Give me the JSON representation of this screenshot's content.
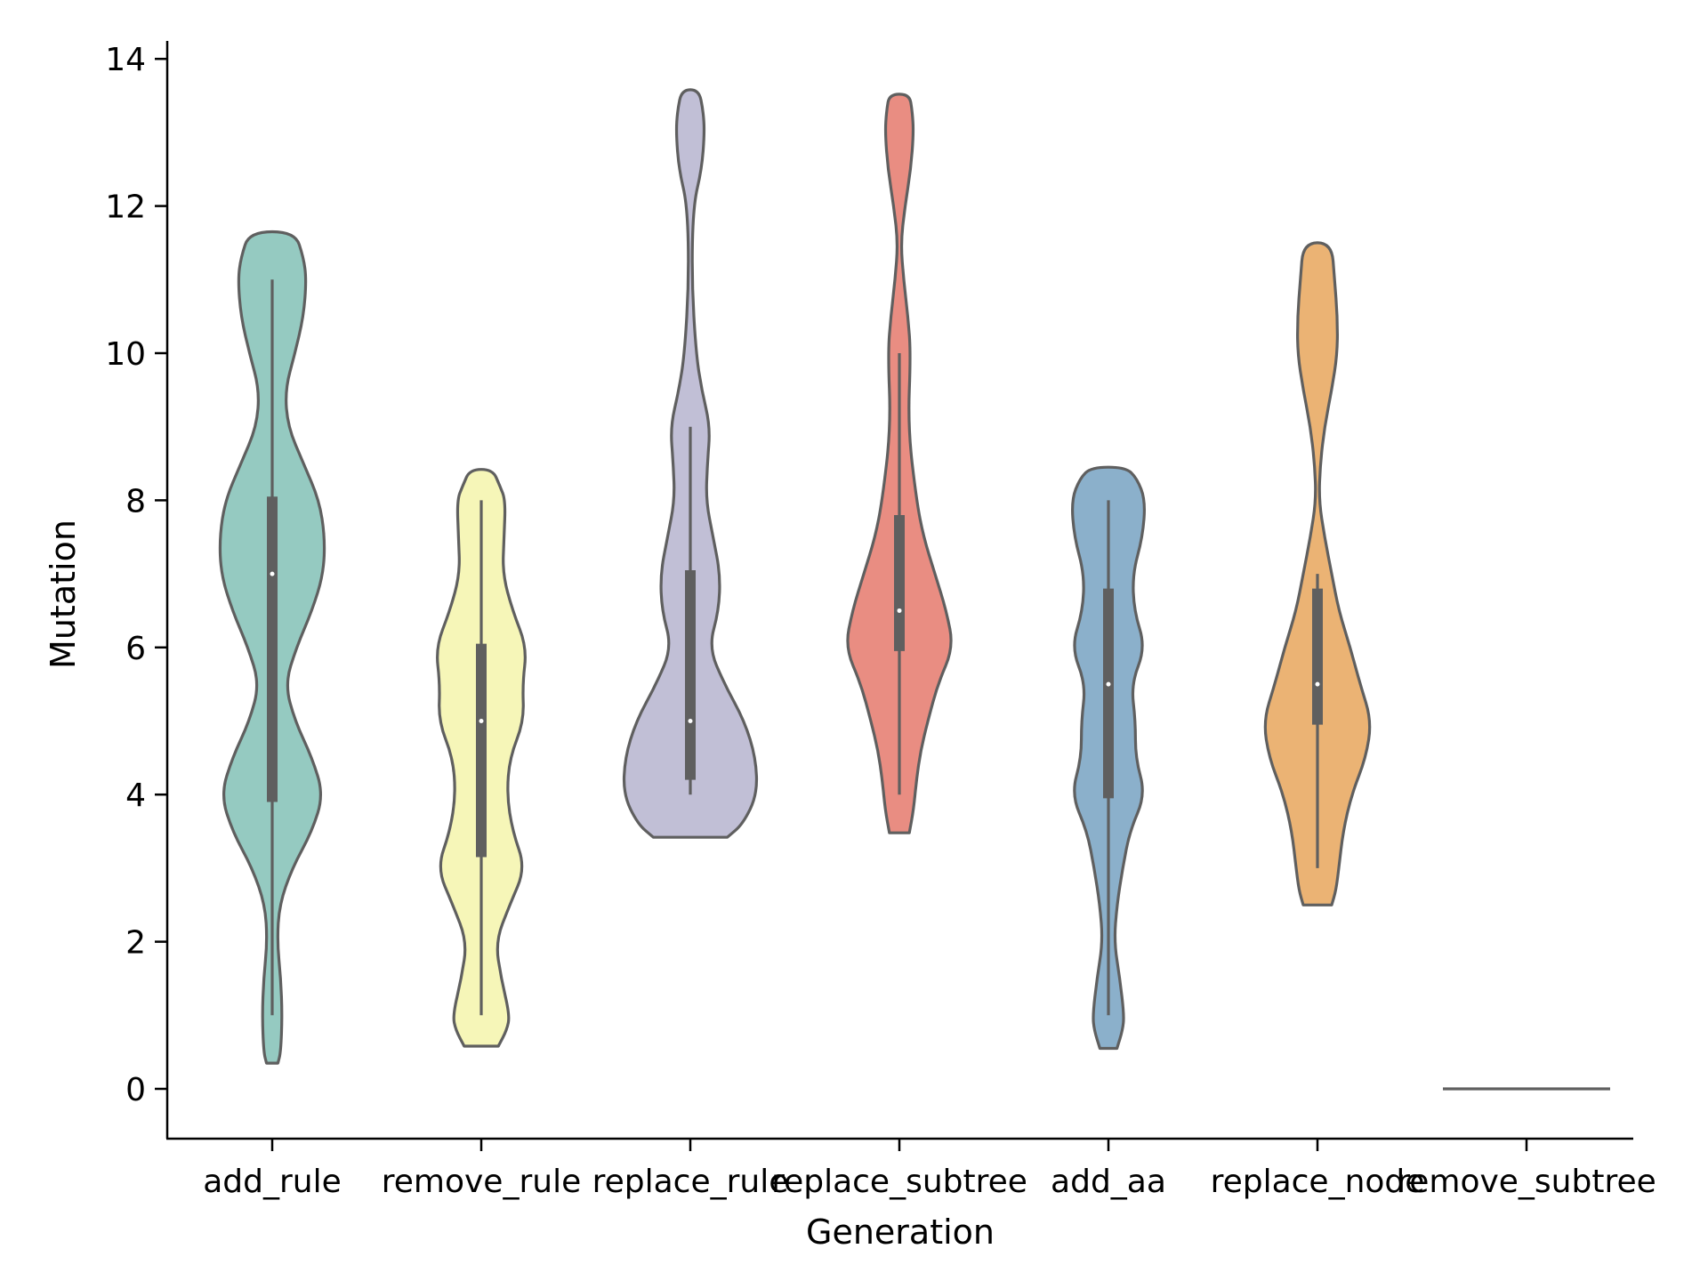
{
  "chart_data": {
    "type": "violin",
    "xlabel": "Generation",
    "ylabel": "Mutation",
    "ylim": [
      -0.7,
      14.3
    ],
    "yticks": [
      0,
      2,
      4,
      6,
      8,
      10,
      12,
      14
    ],
    "grid": false,
    "legend": "none",
    "categories": [
      "add_rule",
      "remove_rule",
      "replace_rule",
      "replace_subtree",
      "add_aa",
      "replace_node",
      "remove_subtree"
    ],
    "series": [
      {
        "category": "add_rule",
        "color": "#95cac1",
        "min": 1,
        "q1": 3.9,
        "median": 7,
        "q3": 8.05,
        "max": 11,
        "density": [
          [
            0.35,
            0.04
          ],
          [
            0.5,
            0.06
          ],
          [
            1,
            0.07
          ],
          [
            1.5,
            0.06
          ],
          [
            2,
            0.035
          ],
          [
            2.5,
            0.05
          ],
          [
            3,
            0.14
          ],
          [
            3.5,
            0.28
          ],
          [
            4,
            0.36
          ],
          [
            4.5,
            0.28
          ],
          [
            5,
            0.16
          ],
          [
            5.5,
            0.09
          ],
          [
            6,
            0.17
          ],
          [
            6.5,
            0.28
          ],
          [
            7,
            0.36
          ],
          [
            7.5,
            0.37
          ],
          [
            8,
            0.33
          ],
          [
            8.5,
            0.22
          ],
          [
            9,
            0.11
          ],
          [
            9.5,
            0.09
          ],
          [
            10,
            0.16
          ],
          [
            10.5,
            0.22
          ],
          [
            11,
            0.24
          ],
          [
            11.3,
            0.22
          ],
          [
            11.65,
            0.16
          ]
        ]
      },
      {
        "category": "remove_rule",
        "color": "#f6f6b8",
        "min": 1,
        "q1": 3.15,
        "median": 5,
        "q3": 6.05,
        "max": 8,
        "density": [
          [
            0.58,
            0.12
          ],
          [
            0.8,
            0.18
          ],
          [
            1,
            0.2
          ],
          [
            1.5,
            0.14
          ],
          [
            2,
            0.1
          ],
          [
            2.5,
            0.2
          ],
          [
            3,
            0.31
          ],
          [
            3.5,
            0.22
          ],
          [
            4,
            0.18
          ],
          [
            4.5,
            0.2
          ],
          [
            5,
            0.3
          ],
          [
            5.5,
            0.29
          ],
          [
            6,
            0.32
          ],
          [
            6.5,
            0.22
          ],
          [
            7,
            0.15
          ],
          [
            7.5,
            0.16
          ],
          [
            8,
            0.17
          ],
          [
            8.2,
            0.13
          ],
          [
            8.42,
            0.08
          ]
        ]
      },
      {
        "category": "replace_rule",
        "color": "#c1bfd6",
        "min": 4,
        "q1": 4.2,
        "median": 5,
        "q3": 7.05,
        "max": 9,
        "density": [
          [
            3.42,
            0.26
          ],
          [
            3.6,
            0.37
          ],
          [
            4,
            0.47
          ],
          [
            4.5,
            0.46
          ],
          [
            5,
            0.38
          ],
          [
            5.5,
            0.24
          ],
          [
            6,
            0.13
          ],
          [
            6.5,
            0.2
          ],
          [
            7,
            0.21
          ],
          [
            7.5,
            0.16
          ],
          [
            8,
            0.11
          ],
          [
            8.5,
            0.12
          ],
          [
            9,
            0.14
          ],
          [
            9.5,
            0.08
          ],
          [
            10,
            0.04
          ],
          [
            11,
            0.01
          ],
          [
            12,
            0.02
          ],
          [
            12.5,
            0.08
          ],
          [
            13,
            0.1
          ],
          [
            13.3,
            0.09
          ],
          [
            13.58,
            0.06
          ]
        ]
      },
      {
        "category": "replace_subtree",
        "color": "#e98d82",
        "min": 4,
        "q1": 5.95,
        "median": 6.5,
        "q3": 7.8,
        "max": 10,
        "density": [
          [
            3.48,
            0.07
          ],
          [
            3.8,
            0.1
          ],
          [
            4.2,
            0.12
          ],
          [
            4.6,
            0.15
          ],
          [
            5,
            0.2
          ],
          [
            5.5,
            0.27
          ],
          [
            6,
            0.38
          ],
          [
            6.5,
            0.33
          ],
          [
            7,
            0.25
          ],
          [
            7.5,
            0.17
          ],
          [
            8,
            0.12
          ],
          [
            9,
            0.06
          ],
          [
            10,
            0.08
          ],
          [
            10.5,
            0.06
          ],
          [
            11,
            0.03
          ],
          [
            11.5,
            0.01
          ],
          [
            12,
            0.04
          ],
          [
            12.5,
            0.08
          ],
          [
            13,
            0.1
          ],
          [
            13.3,
            0.09
          ],
          [
            13.52,
            0.07
          ]
        ]
      },
      {
        "category": "add_aa",
        "color": "#8bb0cb",
        "min": 1,
        "q1": 3.95,
        "median": 5.5,
        "q3": 6.8,
        "max": 8,
        "density": [
          [
            0.55,
            0.06
          ],
          [
            0.8,
            0.1
          ],
          [
            1,
            0.11
          ],
          [
            1.5,
            0.08
          ],
          [
            2,
            0.04
          ],
          [
            2.5,
            0.06
          ],
          [
            3,
            0.1
          ],
          [
            3.5,
            0.15
          ],
          [
            4,
            0.26
          ],
          [
            4.5,
            0.19
          ],
          [
            5,
            0.19
          ],
          [
            5.5,
            0.16
          ],
          [
            6,
            0.26
          ],
          [
            6.5,
            0.18
          ],
          [
            7,
            0.17
          ],
          [
            7.5,
            0.24
          ],
          [
            8,
            0.26
          ],
          [
            8.3,
            0.2
          ],
          [
            8.45,
            0.12
          ]
        ]
      },
      {
        "category": "replace_node",
        "color": "#ebb374",
        "min": 3,
        "q1": 4.95,
        "median": 5.5,
        "q3": 6.8,
        "max": 7,
        "density": [
          [
            2.5,
            0.1
          ],
          [
            2.7,
            0.13
          ],
          [
            3,
            0.15
          ],
          [
            3.5,
            0.18
          ],
          [
            4,
            0.24
          ],
          [
            4.5,
            0.34
          ],
          [
            5,
            0.38
          ],
          [
            5.5,
            0.3
          ],
          [
            6,
            0.23
          ],
          [
            6.5,
            0.15
          ],
          [
            7,
            0.1
          ],
          [
            7.5,
            0.05
          ],
          [
            8,
            0.01
          ],
          [
            8.5,
            0.02
          ],
          [
            9,
            0.05
          ],
          [
            9.5,
            0.1
          ],
          [
            10,
            0.14
          ],
          [
            10.5,
            0.14
          ],
          [
            11,
            0.12
          ],
          [
            11.5,
            0.1
          ]
        ]
      },
      {
        "category": "remove_subtree",
        "color": "#5f5f5f",
        "flat_value": 0
      }
    ]
  }
}
